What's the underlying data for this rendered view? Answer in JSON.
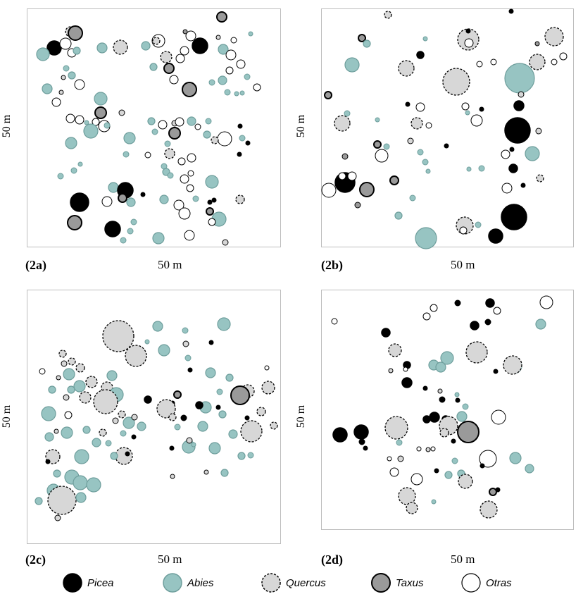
{
  "panels": [
    {
      "id": "2a",
      "label": "(2a)",
      "x_label": "50 m",
      "y_label": "50 m"
    },
    {
      "id": "2b",
      "label": "(2b)",
      "x_label": "50 m",
      "y_label": "50 m"
    },
    {
      "id": "2c",
      "label": "(2c)",
      "x_label": "50 m",
      "y_label": "50 m"
    },
    {
      "id": "2d",
      "label": "(2d)",
      "x_label": "50 m",
      "y_label": "50 m"
    }
  ],
  "legend": [
    {
      "key": "Picea",
      "label": "Picea",
      "fill": "#000000",
      "stroke": "#000000",
      "dashed": false
    },
    {
      "key": "Abies",
      "label": "Abies",
      "fill": "#97c4c2",
      "stroke": "#6e9e9c",
      "dashed": false
    },
    {
      "key": "Quercus",
      "label": "Quercus",
      "fill": "#d7d7d7",
      "stroke": "#000000",
      "dashed": true
    },
    {
      "key": "Taxus",
      "label": "Taxus",
      "fill": "#9a9a9a",
      "stroke": "#000000",
      "dashed": false
    },
    {
      "key": "Otras",
      "label": "Otras",
      "fill": "#ffffff",
      "stroke": "#000000",
      "dashed": false
    }
  ],
  "colors": {
    "Picea": "#000000",
    "Abies": "#97c4c2",
    "Quercus": "#d7d7d7",
    "Taxus": "#9a9a9a",
    "Otras": "#ffffff",
    "frame": "#bdbdbd"
  }
}
